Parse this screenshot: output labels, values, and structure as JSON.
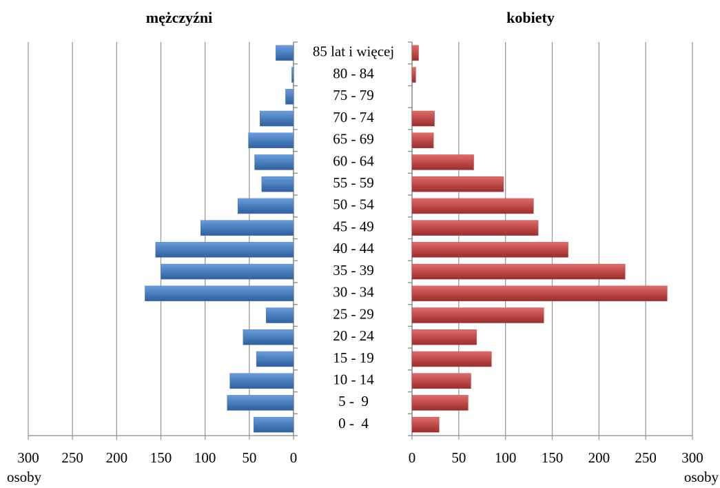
{
  "chart_data": [
    {
      "type": "bar",
      "orientation": "horizontal",
      "title": "mężczyźni",
      "x_label": "osoby",
      "categories": [
        "0 -  4",
        "5 -  9",
        "10 - 14",
        "15 - 19",
        "20 - 24",
        "25 - 29",
        "30 - 34",
        "35 - 39",
        "40 - 44",
        "45 - 49",
        "50 - 54",
        "55 - 59",
        "60 - 64",
        "65 - 69",
        "70 - 74",
        "75 - 79",
        "80 - 84",
        "85 lat i więcej"
      ],
      "values": [
        45,
        75,
        72,
        42,
        57,
        31,
        168,
        150,
        156,
        105,
        63,
        36,
        44,
        51,
        38,
        9,
        2,
        20
      ],
      "color": "#4a7ebb",
      "xlim": [
        300,
        0
      ],
      "xticks": [
        300,
        250,
        200,
        150,
        100,
        50,
        0
      ],
      "grid": true
    },
    {
      "type": "bar",
      "orientation": "horizontal",
      "title": "kobiety",
      "x_label": "osoby",
      "values": [
        29,
        60,
        63,
        85,
        69,
        141,
        273,
        228,
        167,
        135,
        130,
        98,
        66,
        23,
        24,
        0,
        4,
        7
      ],
      "color": "#be4b48",
      "xlim": [
        0,
        300
      ],
      "xticks": [
        0,
        50,
        100,
        150,
        200,
        250,
        300
      ],
      "grid": true
    }
  ]
}
